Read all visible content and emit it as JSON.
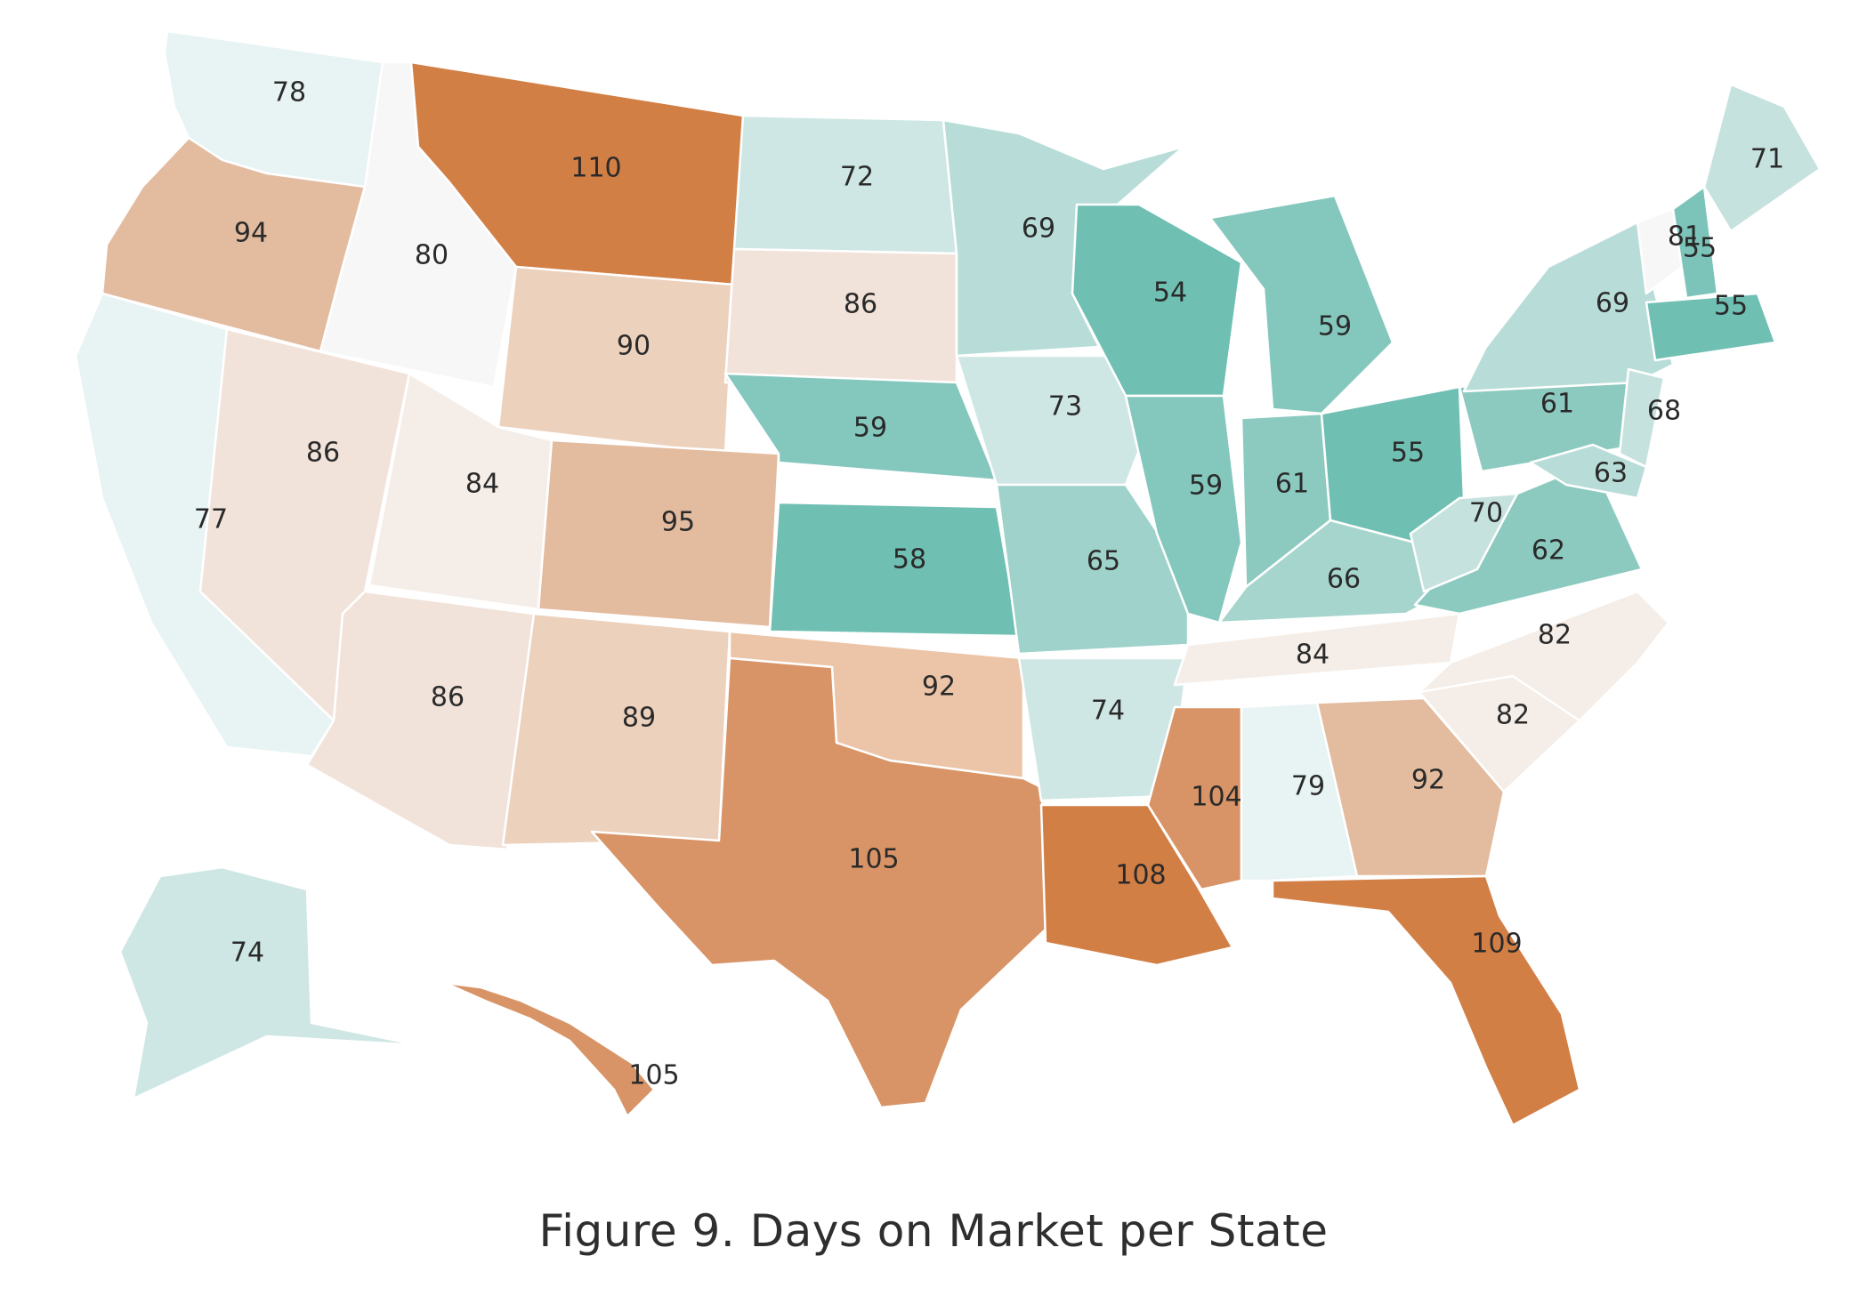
{
  "caption": "Figure 9. Days on Market per State",
  "map": {
    "metric": "Days on Market",
    "colors": {
      "teal_darkest": "#6fbfb3",
      "teal_dark": "#84c7bd",
      "teal_mid": "#9ed2ca",
      "teal_light": "#b8ddd8",
      "teal_lighter": "#cfe7e4",
      "teal_faint": "#e8f3f3",
      "neutral": "#f7f7f7",
      "peach_faint": "#f5ede7",
      "peach_light": "#f2e3da",
      "peach_mid": "#ecd1bd",
      "peach": "#e3bb9f",
      "orange": "#d89466",
      "orange_dark": "#d27f45"
    },
    "states": [
      {
        "id": "WA",
        "value": "78",
        "color": "#e8f3f3"
      },
      {
        "id": "OR",
        "value": "94",
        "color": "#e3bb9f"
      },
      {
        "id": "CA",
        "value": "77",
        "color": "#e8f3f3"
      },
      {
        "id": "ID",
        "value": "80",
        "color": "#f7f7f7"
      },
      {
        "id": "NV",
        "value": "86",
        "color": "#f2e3da"
      },
      {
        "id": "MT",
        "value": "110",
        "color": "#d27f45"
      },
      {
        "id": "WY",
        "value": "90",
        "color": "#ecd1bd"
      },
      {
        "id": "UT",
        "value": "84",
        "color": "#f5ede7"
      },
      {
        "id": "AZ",
        "value": "86",
        "color": "#f2e3da"
      },
      {
        "id": "CO",
        "value": "95",
        "color": "#e3bb9f"
      },
      {
        "id": "NM",
        "value": "89",
        "color": "#ecd1bd"
      },
      {
        "id": "ND",
        "value": "72",
        "color": "#cfe7e4"
      },
      {
        "id": "SD",
        "value": "86",
        "color": "#f2e3da"
      },
      {
        "id": "NE",
        "value": "59",
        "color": "#84c7bd"
      },
      {
        "id": "KS",
        "value": "58",
        "color": "#6fbfb3"
      },
      {
        "id": "OK",
        "value": "92",
        "color": "#ecc5a8"
      },
      {
        "id": "TX",
        "value": "105",
        "color": "#d89466"
      },
      {
        "id": "MN",
        "value": "69",
        "color": "#b8ddd8"
      },
      {
        "id": "IA",
        "value": "73",
        "color": "#cfe7e4"
      },
      {
        "id": "MO",
        "value": "65",
        "color": "#9ed2ca"
      },
      {
        "id": "AR",
        "value": "74",
        "color": "#cfe7e4"
      },
      {
        "id": "LA",
        "value": "108",
        "color": "#d27f45"
      },
      {
        "id": "WI",
        "value": "54",
        "color": "#6fbfb3"
      },
      {
        "id": "IL",
        "value": "59",
        "color": "#84c7bd"
      },
      {
        "id": "MI",
        "value": "59",
        "color": "#84c7bd"
      },
      {
        "id": "IN",
        "value": "61",
        "color": "#8ccac0"
      },
      {
        "id": "OH",
        "value": "55",
        "color": "#6fbfb3"
      },
      {
        "id": "KY",
        "value": "66",
        "color": "#a6d5ce"
      },
      {
        "id": "TN",
        "value": "84",
        "color": "#f5ede7"
      },
      {
        "id": "MS",
        "value": "104",
        "color": "#d89466"
      },
      {
        "id": "AL",
        "value": "79",
        "color": "#e8f3f3"
      },
      {
        "id": "GA",
        "value": "92",
        "color": "#e3bb9f"
      },
      {
        "id": "FL",
        "value": "109",
        "color": "#d27f45"
      },
      {
        "id": "SC",
        "value": "82",
        "color": "#f5ede7"
      },
      {
        "id": "NC",
        "value": "82",
        "color": "#f5ede7"
      },
      {
        "id": "VA",
        "value": "62",
        "color": "#8ccac0"
      },
      {
        "id": "WV",
        "value": "70",
        "color": "#c6e2de"
      },
      {
        "id": "PA",
        "value": "61",
        "color": "#8ccac0"
      },
      {
        "id": "NY",
        "value": "69",
        "color": "#b8ddd8"
      },
      {
        "id": "VT",
        "value": "81",
        "color": "#f7f7f7"
      },
      {
        "id": "NH",
        "value": "55",
        "color": "#7cc4b9"
      },
      {
        "id": "ME",
        "value": "71",
        "color": "#c6e2de"
      },
      {
        "id": "MA",
        "value": "55",
        "color": "#6fbfb3"
      },
      {
        "id": "NJ",
        "value": "68",
        "color": "#c6e2de"
      },
      {
        "id": "MD",
        "value": "63",
        "color": "#b8ddd8"
      },
      {
        "id": "AK",
        "value": "74",
        "color": "#cfe7e4"
      },
      {
        "id": "HI",
        "value": "105",
        "color": "#d89466"
      }
    ]
  }
}
